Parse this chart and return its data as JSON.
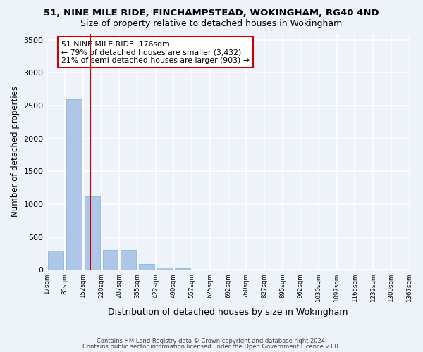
{
  "title": "51, NINE MILE RIDE, FINCHAMPSTEAD, WOKINGHAM, RG40 4ND",
  "subtitle": "Size of property relative to detached houses in Wokingham",
  "xlabel": "Distribution of detached houses by size in Wokingham",
  "ylabel": "Number of detached properties",
  "bar_color": "#aec6e8",
  "bar_edge_color": "#7ab0d4",
  "background_color": "#eef2f9",
  "grid_color": "#ffffff",
  "annotation_line_color": "#cc0000",
  "annotation_box_color": "#cc0000",
  "annotation_text": "51 NINE MILE RIDE: 176sqm\n← 79% of detached houses are smaller (3,432)\n21% of semi-detached houses are larger (903) →",
  "tick_labels": [
    "17sqm",
    "85sqm",
    "152sqm",
    "220sqm",
    "287sqm",
    "355sqm",
    "422sqm",
    "490sqm",
    "557sqm",
    "625sqm",
    "692sqm",
    "760sqm",
    "827sqm",
    "895sqm",
    "962sqm",
    "1030sqm",
    "1097sqm",
    "1165sqm",
    "1232sqm",
    "1300sqm",
    "1367sqm"
  ],
  "bar_values": [
    290,
    2600,
    1120,
    300,
    300,
    90,
    40,
    30,
    0,
    0,
    0,
    0,
    0,
    0,
    0,
    0,
    0,
    0,
    0,
    0
  ],
  "ylim": [
    0,
    3600
  ],
  "yticks": [
    0,
    500,
    1000,
    1500,
    2000,
    2500,
    3000,
    3500
  ],
  "property_line_x": 1.9,
  "footnote1": "Contains HM Land Registry data © Crown copyright and database right 2024.",
  "footnote2": "Contains public sector information licensed under the Open Government Licence v3.0."
}
